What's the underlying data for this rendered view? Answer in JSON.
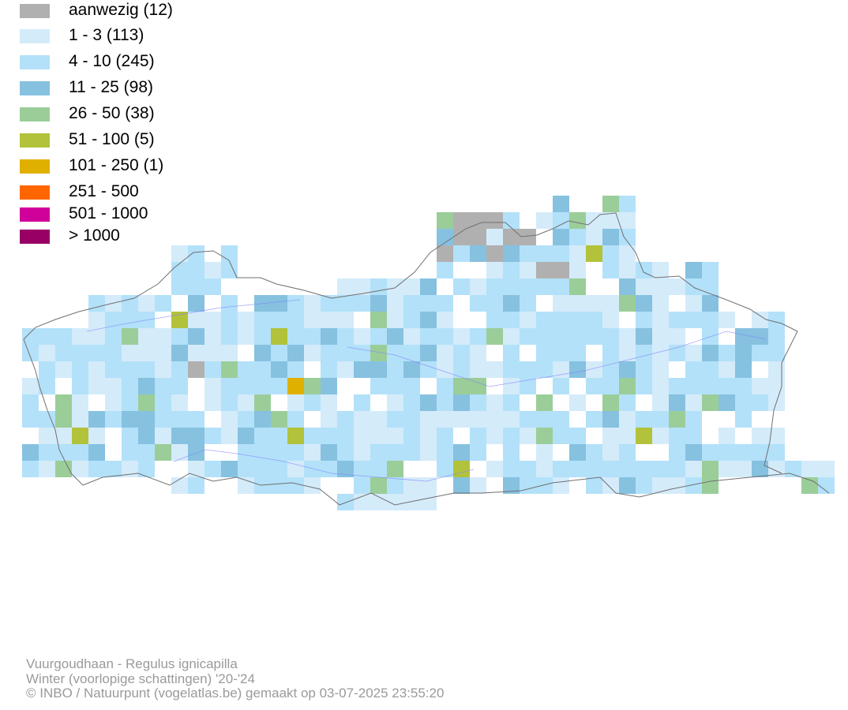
{
  "legend": [
    {
      "label": "aanwezig (12)",
      "color": "#b0b0b0"
    },
    {
      "label": "1 - 3 (113)",
      "color": "#d4ebfa"
    },
    {
      "label": "4 - 10 (245)",
      "color": "#b3e1f9"
    },
    {
      "label": "11 - 25 (98)",
      "color": "#86c1e0"
    },
    {
      "label": "26 - 50 (38)",
      "color": "#9bcd99"
    },
    {
      "label": "51 - 100 (5)",
      "color": "#b2c23a"
    },
    {
      "label": "101 - 250 (1)",
      "color": "#e0b000"
    },
    {
      "label": "251 - 500",
      "color": "#ff6600"
    },
    {
      "label": "501 - 1000",
      "color": "#d0009a"
    },
    {
      "label": "> 1000",
      "color": "#990066"
    }
  ],
  "credits": {
    "species": "Vuurgoudhaan - Regulus ignicapilla",
    "period": "Winter (voorlopige schattingen) '20-'24",
    "copyright": "© INBO / Natuurpunt (vogelatlas.be) gemaakt op 03-07-2025 23:55:20"
  }
}
